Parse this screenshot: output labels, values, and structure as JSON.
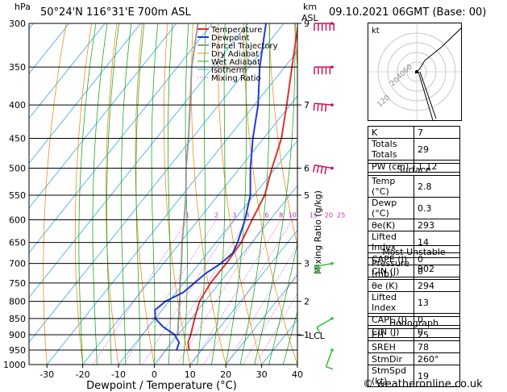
{
  "header": {
    "hpa_label": "hPa",
    "station": "50°24'N  116°31'E  700m  ASL",
    "km_label": "km",
    "asl_label": "ASL",
    "datetime": "09.10.2021  06GMT  (Base: 00)"
  },
  "footer": {
    "copyright": "© weatheronline.co.uk"
  },
  "colors": {
    "temperature": "#e03030",
    "dewpoint": "#1e3ad8",
    "parcel": "#9a9a9a",
    "dry_adiabat": "#e8901c",
    "wet_adiabat": "#22aa22",
    "isotherm": "#30a8e8",
    "mixing_ratio": "#c030c0",
    "wind": "#d0105a",
    "wind_low": "#30c030"
  },
  "legend": [
    "Temperature",
    "Dewpoint",
    "Parcel Trajectory",
    "Dry Adiabat",
    "Wet Adiabat",
    "Isotherm",
    "Mixing Ratio"
  ],
  "mixing_ratio_axis_label": "Mixing Ratio (g/kg)",
  "lcl_label": "LCL",
  "chart_data": {
    "type": "line",
    "title": "",
    "xlabel": "Dewpoint / Temperature (°C)",
    "ylabel": "hPa",
    "ylog": true,
    "xlim": [
      -35,
      40
    ],
    "ylim": [
      1000,
      300
    ],
    "x_ticks": [
      "-30",
      "-20",
      "-10",
      "0",
      "10",
      "20",
      "30",
      "40"
    ],
    "pressure_levels": [
      "300",
      "350",
      "400",
      "450",
      "500",
      "550",
      "600",
      "650",
      "700",
      "750",
      "800",
      "850",
      "900",
      "950",
      "1000"
    ],
    "km_ticks": [
      {
        "p": 300,
        "label": "9"
      },
      {
        "p": 400,
        "label": "7"
      },
      {
        "p": 500,
        "label": "6"
      },
      {
        "p": 550,
        "label": "5"
      },
      {
        "p": 700,
        "label": "3"
      },
      {
        "p": 800,
        "label": "2"
      },
      {
        "p": 900,
        "label": "1"
      }
    ],
    "mixing_ratio_labels": [
      "1",
      "2",
      "3",
      "4",
      "6",
      "8",
      "10",
      "15",
      "20",
      "25"
    ],
    "mixing_ratio_values": [
      1,
      2,
      3,
      4,
      6,
      8,
      10,
      15,
      20,
      25
    ],
    "series": [
      {
        "name": "Temperature",
        "p": [
          950,
          925,
          900,
          850,
          800,
          750,
          700,
          650,
          600,
          550,
          500,
          450,
          400,
          350,
          300
        ],
        "t": [
          6.5,
          4.5,
          3.5,
          1,
          -1.5,
          -2.5,
          -2.5,
          -3,
          -5,
          -7,
          -11,
          -15,
          -21,
          -28,
          -36
        ]
      },
      {
        "name": "Dewpoint",
        "p": [
          950,
          925,
          900,
          875,
          850,
          825,
          800,
          775,
          750,
          725,
          700,
          675,
          650,
          600,
          550,
          500,
          450,
          400,
          350,
          300
        ],
        "t": [
          3,
          2,
          -1,
          -6,
          -10,
          -12,
          -11,
          -8,
          -7,
          -6,
          -4,
          -3,
          -4,
          -7,
          -11,
          -17,
          -23,
          -29,
          -37,
          -45
        ]
      },
      {
        "name": "Parcel Trajectory",
        "p": [
          902,
          850,
          800,
          750,
          700,
          650,
          600,
          550,
          500,
          450,
          400,
          350,
          300
        ],
        "t": [
          0,
          -3.5,
          -7,
          -11,
          -15,
          -19.5,
          -24,
          -29,
          -35,
          -41,
          -48,
          -56,
          -64
        ]
      }
    ],
    "wind_barbs": [
      {
        "p": 300,
        "dir": 270,
        "kt": 60
      },
      {
        "p": 350,
        "dir": 270,
        "kt": 55
      },
      {
        "p": 400,
        "dir": 275,
        "kt": 45
      },
      {
        "p": 500,
        "dir": 280,
        "kt": 40
      },
      {
        "p": 700,
        "dir": 260,
        "kt": 20
      },
      {
        "p": 850,
        "dir": 240,
        "kt": 15
      },
      {
        "p": 950,
        "dir": 200,
        "kt": 10
      }
    ]
  },
  "hodograph": {
    "kt_label": "kt",
    "ring_labels": [
      "20",
      "40",
      "60",
      "120"
    ]
  },
  "indices": {
    "rows": [
      {
        "label": "K",
        "value": "7"
      },
      {
        "label": "Totals Totals",
        "value": "29"
      },
      {
        "label": "PW (cm)",
        "value": "1.12"
      }
    ],
    "surface": {
      "title": "Surface",
      "rows": [
        {
          "label": "Temp (°C)",
          "value": "2.8"
        },
        {
          "label": "Dewp (°C)",
          "value": "0.3"
        },
        {
          "label": "θe(K)",
          "value": "293"
        },
        {
          "label": "Lifted Index",
          "value": "14"
        },
        {
          "label": "CAPE (J)",
          "value": "0"
        },
        {
          "label": "CIN (J)",
          "value": "0"
        }
      ]
    },
    "most_unstable": {
      "title": "Most Unstable",
      "rows": [
        {
          "label": "Pressure (mb)",
          "value": "902"
        },
        {
          "label": "θe (K)",
          "value": "294"
        },
        {
          "label": "Lifted Index",
          "value": "13"
        },
        {
          "label": "CAPE (J)",
          "value": "0"
        },
        {
          "label": "CIN (J)",
          "value": "0"
        }
      ]
    },
    "hodograph_table": {
      "title": "Hodograph",
      "rows": [
        {
          "label": "EH",
          "value": "25"
        },
        {
          "label": "SREH",
          "value": "78"
        },
        {
          "label": "StmDir",
          "value": "260°"
        },
        {
          "label": "StmSpd (kt)",
          "value": "19"
        }
      ]
    }
  }
}
